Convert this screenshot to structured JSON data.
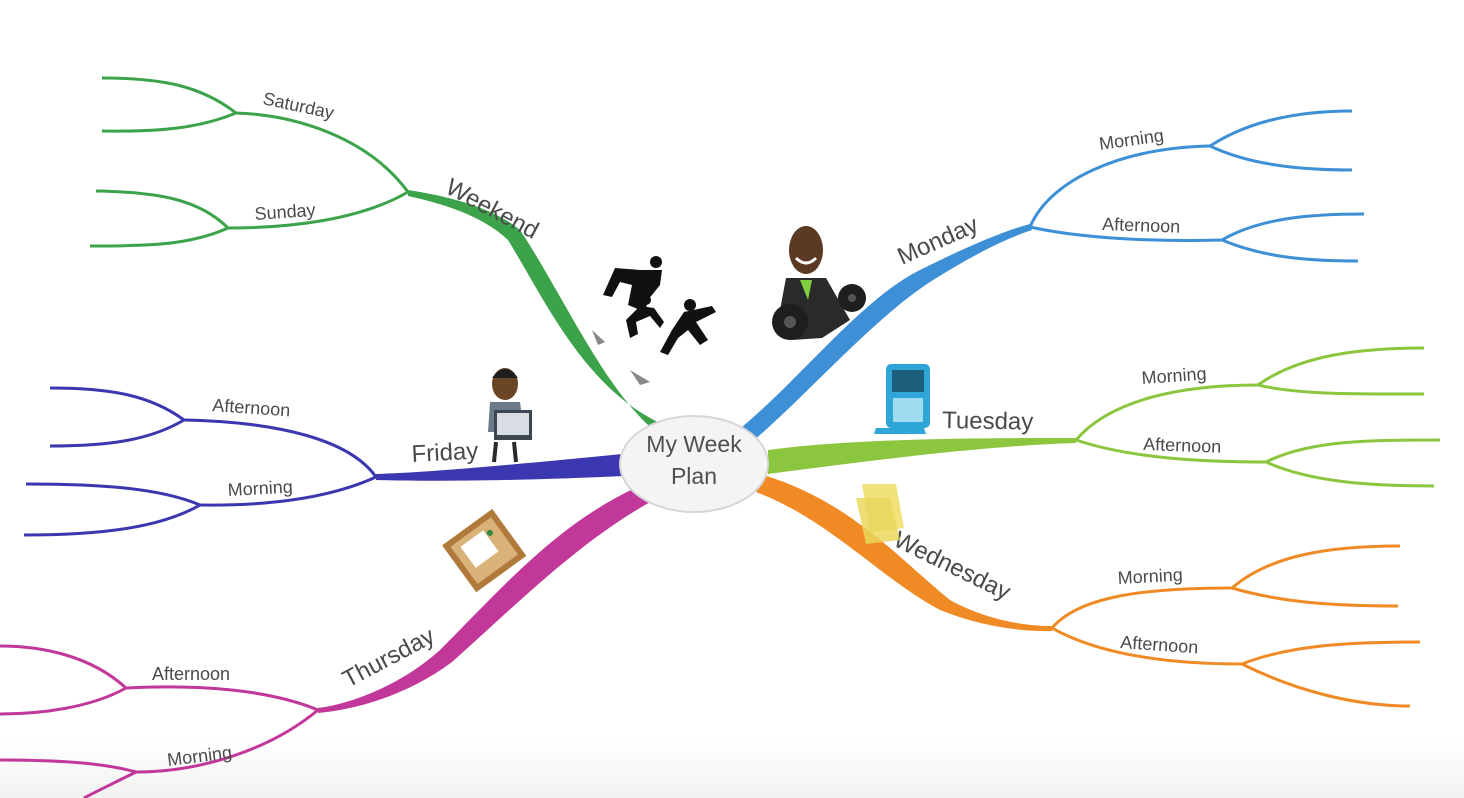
{
  "central_topic": {
    "line1": "My Week",
    "line2": "Plan"
  },
  "branches": {
    "weekend": {
      "label": "Weekend",
      "color": "#3ca34a",
      "sub": [
        "Saturday",
        "Sunday"
      ]
    },
    "monday": {
      "label": "Monday",
      "color": "#3d8fd6",
      "sub": [
        "Morning",
        "Afternoon"
      ]
    },
    "tuesday": {
      "label": "Tuesday",
      "color": "#8cc63f",
      "sub": [
        "Morning",
        "Afternoon"
      ]
    },
    "wednesday": {
      "label": "Wednesday",
      "color": "#f08a24",
      "sub": [
        "Morning",
        "Afternoon"
      ]
    },
    "thursday": {
      "label": "Thursday",
      "color": "#c2389a",
      "sub": [
        "Afternoon",
        "Morning"
      ]
    },
    "friday": {
      "label": "Friday",
      "color": "#3b37b0",
      "sub": [
        "Afternoon",
        "Morning"
      ]
    }
  },
  "icons": [
    "jumping-people-icon",
    "businessman-icon",
    "phone-icon",
    "sticky-note-icon",
    "notice-board-icon",
    "person-laptop-icon"
  ]
}
